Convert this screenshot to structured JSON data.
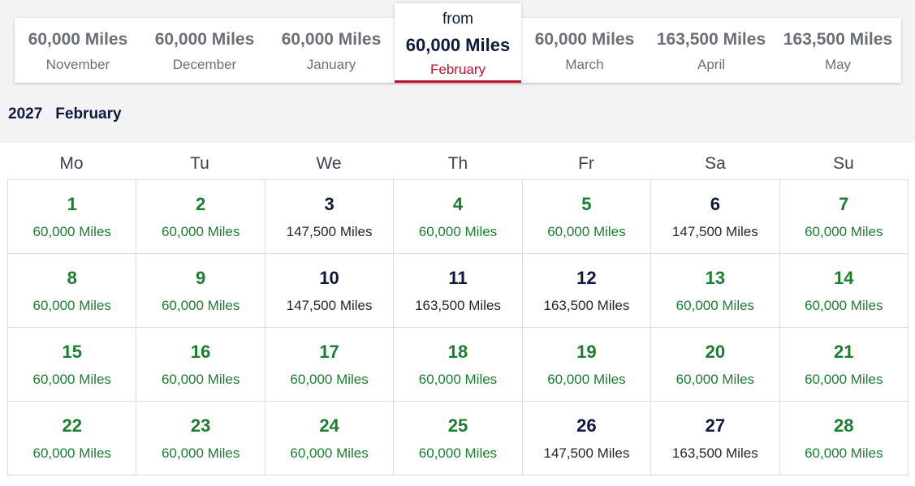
{
  "months": [
    {
      "miles": "60,000 Miles",
      "name": "November",
      "selected": false
    },
    {
      "miles": "60,000 Miles",
      "name": "December",
      "selected": false
    },
    {
      "miles": "60,000 Miles",
      "name": "January",
      "selected": false
    },
    {
      "from": "from",
      "miles": "60,000 Miles",
      "name": "February",
      "selected": true
    },
    {
      "miles": "60,000 Miles",
      "name": "March",
      "selected": false
    },
    {
      "miles": "163,500 Miles",
      "name": "April",
      "selected": false
    },
    {
      "miles": "163,500 Miles",
      "name": "May",
      "selected": false
    }
  ],
  "calendar": {
    "year": "2027",
    "month": "February",
    "weekdays": [
      "Mo",
      "Tu",
      "We",
      "Th",
      "Fr",
      "Sa",
      "Su"
    ],
    "days": [
      {
        "day": "1",
        "price": "60,000 Miles",
        "tier": "low"
      },
      {
        "day": "2",
        "price": "60,000 Miles",
        "tier": "low"
      },
      {
        "day": "3",
        "price": "147,500 Miles",
        "tier": "high"
      },
      {
        "day": "4",
        "price": "60,000 Miles",
        "tier": "low"
      },
      {
        "day": "5",
        "price": "60,000 Miles",
        "tier": "low"
      },
      {
        "day": "6",
        "price": "147,500 Miles",
        "tier": "high"
      },
      {
        "day": "7",
        "price": "60,000 Miles",
        "tier": "low"
      },
      {
        "day": "8",
        "price": "60,000 Miles",
        "tier": "low"
      },
      {
        "day": "9",
        "price": "60,000 Miles",
        "tier": "low"
      },
      {
        "day": "10",
        "price": "147,500 Miles",
        "tier": "high"
      },
      {
        "day": "11",
        "price": "163,500 Miles",
        "tier": "high"
      },
      {
        "day": "12",
        "price": "163,500 Miles",
        "tier": "high"
      },
      {
        "day": "13",
        "price": "60,000 Miles",
        "tier": "low"
      },
      {
        "day": "14",
        "price": "60,000 Miles",
        "tier": "low"
      },
      {
        "day": "15",
        "price": "60,000 Miles",
        "tier": "low"
      },
      {
        "day": "16",
        "price": "60,000 Miles",
        "tier": "low"
      },
      {
        "day": "17",
        "price": "60,000 Miles",
        "tier": "low"
      },
      {
        "day": "18",
        "price": "60,000 Miles",
        "tier": "low"
      },
      {
        "day": "19",
        "price": "60,000 Miles",
        "tier": "low"
      },
      {
        "day": "20",
        "price": "60,000 Miles",
        "tier": "low"
      },
      {
        "day": "21",
        "price": "60,000 Miles",
        "tier": "low"
      },
      {
        "day": "22",
        "price": "60,000 Miles",
        "tier": "low"
      },
      {
        "day": "23",
        "price": "60,000 Miles",
        "tier": "low"
      },
      {
        "day": "24",
        "price": "60,000 Miles",
        "tier": "low"
      },
      {
        "day": "25",
        "price": "60,000 Miles",
        "tier": "low"
      },
      {
        "day": "26",
        "price": "147,500 Miles",
        "tier": "high"
      },
      {
        "day": "27",
        "price": "163,500 Miles",
        "tier": "high"
      },
      {
        "day": "28",
        "price": "60,000 Miles",
        "tier": "low"
      }
    ]
  },
  "colors": {
    "low_price": "#1b7e2f",
    "high_price": "#1f2433",
    "accent": "#c8102e",
    "navy": "#0c1a3d"
  }
}
